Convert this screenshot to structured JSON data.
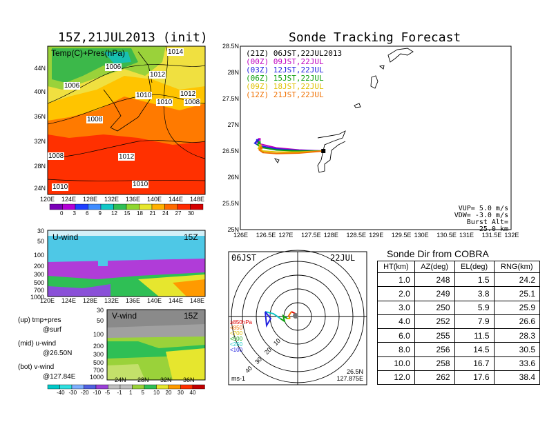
{
  "left": {
    "title": "15Z,21JUL2013 (init)",
    "map_label": "Temp(C)+Pres(hPa)",
    "isobars": [
      "1014",
      "1006",
      "1006",
      "1012",
      "1010",
      "1012",
      "1010",
      "1008",
      "1008",
      "1008",
      "1012",
      "1010",
      "1010"
    ],
    "lat_ticks": [
      "44N",
      "40N",
      "36N",
      "32N",
      "28N",
      "24N"
    ],
    "lon_ticks": [
      "120E",
      "124E",
      "128E",
      "132E",
      "136E",
      "140E",
      "144E",
      "148E"
    ],
    "temp_scale": [
      "0",
      "3",
      "6",
      "9",
      "12",
      "15",
      "18",
      "21",
      "24",
      "27",
      "30"
    ],
    "temp_colors": [
      "#7a00b8",
      "#b300d6",
      "#1f3fff",
      "#3e8cff",
      "#11c7c7",
      "#2fbf55",
      "#8ed62e",
      "#e6e62e",
      "#ffb000",
      "#ff6a00",
      "#ff2a00",
      "#d40000"
    ],
    "uwind_label": "U-wind",
    "vwind_label": "V-wind",
    "time_label": "15Z",
    "p_ticks": [
      "30",
      "50",
      "100",
      "200",
      "300",
      "500",
      "700",
      "1000"
    ],
    "lat_ticks_v": [
      "24N",
      "28N",
      "32N",
      "36N"
    ],
    "wind_scale": [
      "-40",
      "-30",
      "-20",
      "-10",
      "-5",
      "-1",
      "1",
      "5",
      "10",
      "20",
      "30",
      "40"
    ],
    "legend_lines": [
      "(up) tmp+pres",
      "@surf",
      "(mid) u-wind",
      "@26.50N",
      "(bot) v-wind",
      "@127.84E"
    ]
  },
  "track": {
    "title": "Sonde Tracking Forecast",
    "header": "(21Z) 06JST,22JUL2013",
    "entries": [
      {
        "text": "(00Z) 09JST,22JUL",
        "color": "#c000c0"
      },
      {
        "text": "(03Z) 12JST,22JUL",
        "color": "#2020e0"
      },
      {
        "text": "(06Z) 15JST,22JUL",
        "color": "#10a010"
      },
      {
        "text": "(09Z) 18JST,22JUL",
        "color": "#e0c000"
      },
      {
        "text": "(12Z) 21JST,22JUL",
        "color": "#f07000"
      }
    ],
    "lat_ticks": [
      "28.5N",
      "28N",
      "27.5N",
      "27N",
      "26.5N",
      "26N",
      "25.5N",
      "25N"
    ],
    "lon_ticks": [
      "126E",
      "126.5E",
      "127E",
      "127.5E",
      "128E",
      "128.5E",
      "129E",
      "129.5E",
      "130E",
      "130.5E",
      "131E",
      "131.5E",
      "132E"
    ],
    "vup": "VUP= 5.0 m/s",
    "vdw": "VDW= -3.0 m/s",
    "burst": "Burst Alt= 25.0 km"
  },
  "polar": {
    "left_label": "06JST",
    "right_label": "22JUL",
    "legend": [
      {
        "text": "≥850hPa",
        "color": "#e00000"
      },
      {
        "text": "<850",
        "color": "#f07000"
      },
      {
        "text": "<700",
        "color": "#e0c000"
      },
      {
        "text": "<500",
        "color": "#10a010"
      },
      {
        "text": "<250",
        "color": "#11c7c7"
      },
      {
        "text": "<100",
        "color": "#2020e0"
      }
    ],
    "ring_labels": [
      "10",
      "20",
      "30",
      "40"
    ],
    "unit": "ms-1",
    "loc_lat": "26.5N",
    "loc_lon": "127.875E"
  },
  "sonde_dir": {
    "title": "Sonde Dir from COBRA",
    "headers": [
      "HT(km)",
      "AZ(deg)",
      "EL(deg)",
      "RNG(km)"
    ],
    "rows": [
      [
        "1.0",
        "248",
        "1.5",
        "24.2"
      ],
      [
        "2.0",
        "249",
        "3.8",
        "25.1"
      ],
      [
        "3.0",
        "250",
        "5.9",
        "25.9"
      ],
      [
        "4.0",
        "252",
        "7.9",
        "26.6"
      ],
      [
        "6.0",
        "255",
        "11.5",
        "28.3"
      ],
      [
        "8.0",
        "256",
        "14.5",
        "30.5"
      ],
      [
        "10.0",
        "258",
        "16.7",
        "33.6"
      ],
      [
        "12.0",
        "262",
        "17.6",
        "38.4"
      ]
    ]
  },
  "chart_data": [
    {
      "type": "heatmap",
      "title": "15Z,21JUL2013 (init)",
      "subtitle": "Temp(C)+Pres(hPa)",
      "xlim": [
        120,
        150
      ],
      "ylim": [
        22,
        48
      ],
      "color_levels": [
        0,
        3,
        6,
        9,
        12,
        15,
        18,
        21,
        24,
        27,
        30
      ]
    },
    {
      "type": "line",
      "title": "Sonde Tracking Forecast",
      "xlim": [
        126,
        132
      ],
      "ylim": [
        25,
        28.5
      ],
      "series": [
        {
          "name": "(00Z) 09JST,22JUL",
          "x": [
            127.84,
            127.3,
            126.8,
            126.45,
            126.35,
            126.42
          ],
          "y": [
            26.5,
            26.52,
            26.56,
            26.63,
            26.68,
            26.72
          ]
        },
        {
          "name": "(03Z) 12JST,22JUL",
          "x": [
            127.84,
            127.3,
            126.8,
            126.42,
            126.32,
            126.38
          ],
          "y": [
            26.5,
            26.51,
            26.54,
            26.6,
            26.65,
            26.7
          ]
        },
        {
          "name": "(06Z) 15JST,22JUL",
          "x": [
            127.84,
            127.3,
            126.8,
            126.45,
            126.38,
            126.42
          ],
          "y": [
            26.5,
            26.5,
            26.52,
            26.57,
            26.62,
            26.66
          ]
        },
        {
          "name": "(09Z) 18JST,22JUL",
          "x": [
            127.84,
            127.3,
            126.8,
            126.5,
            126.4,
            126.44
          ],
          "y": [
            26.5,
            26.48,
            26.48,
            26.5,
            26.55,
            26.6
          ]
        },
        {
          "name": "(12Z) 21JST,22JUL",
          "x": [
            127.84,
            127.3,
            126.8,
            126.5,
            126.42,
            126.46
          ],
          "y": [
            26.5,
            26.46,
            26.45,
            26.47,
            26.52,
            26.56
          ]
        }
      ]
    },
    {
      "type": "table",
      "title": "Sonde Dir from COBRA",
      "columns": [
        "HT(km)",
        "AZ(deg)",
        "EL(deg)",
        "RNG(km)"
      ],
      "rows": [
        [
          1.0,
          248,
          1.5,
          24.2
        ],
        [
          2.0,
          249,
          3.8,
          25.1
        ],
        [
          3.0,
          250,
          5.9,
          25.9
        ],
        [
          4.0,
          252,
          7.9,
          26.6
        ],
        [
          6.0,
          255,
          11.5,
          28.3
        ],
        [
          8.0,
          256,
          14.5,
          30.5
        ],
        [
          10.0,
          258,
          16.7,
          33.6
        ],
        [
          12.0,
          262,
          17.6,
          38.4
        ]
      ]
    }
  ]
}
